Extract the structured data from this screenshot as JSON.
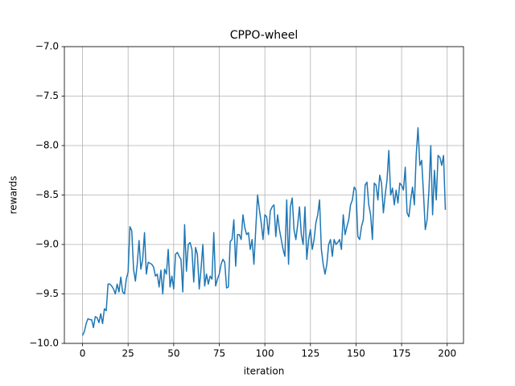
{
  "chart_data": {
    "type": "line",
    "title": "CPPO-wheel",
    "xlabel": "iteration",
    "ylabel": "rewards",
    "xlim": [
      -9.95,
      208.95
    ],
    "xticks": [
      0,
      25,
      50,
      75,
      100,
      125,
      150,
      175,
      200
    ],
    "ylim": [
      -10,
      -7
    ],
    "yticks": [
      {
        "value": -10,
        "label": "−10.0"
      },
      {
        "value": -9.5,
        "label": "−9.5"
      },
      {
        "value": -9,
        "label": "−9.0"
      },
      {
        "value": -8.5,
        "label": "−8.5"
      },
      {
        "value": -8,
        "label": "−8.0"
      },
      {
        "value": -7.5,
        "label": "−7.5"
      },
      {
        "value": -7,
        "label": "−7.0"
      }
    ],
    "grid": true,
    "color": "#1f77b4",
    "values": [
      -9.92,
      -9.88,
      -9.8,
      -9.75,
      -9.76,
      -9.76,
      -9.84,
      -9.73,
      -9.74,
      -9.79,
      -9.7,
      -9.8,
      -9.65,
      -9.67,
      -9.4,
      -9.4,
      -9.42,
      -9.45,
      -9.5,
      -9.4,
      -9.48,
      -9.33,
      -9.48,
      -9.5,
      -9.35,
      -9.28,
      -8.82,
      -8.86,
      -9.25,
      -9.37,
      -9.2,
      -8.96,
      -9.25,
      -9.15,
      -8.88,
      -9.3,
      -9.18,
      -9.19,
      -9.2,
      -9.23,
      -9.32,
      -9.3,
      -9.43,
      -9.26,
      -9.5,
      -9.25,
      -9.3,
      -9.05,
      -9.43,
      -9.32,
      -9.45,
      -9.1,
      -9.08,
      -9.12,
      -9.15,
      -9.48,
      -8.8,
      -9.27,
      -9.0,
      -8.98,
      -9.05,
      -9.38,
      -9.03,
      -9.1,
      -9.45,
      -9.25,
      -9.0,
      -9.42,
      -9.3,
      -9.4,
      -9.32,
      -9.35,
      -8.88,
      -9.42,
      -9.35,
      -9.3,
      -9.2,
      -9.15,
      -9.18,
      -9.44,
      -9.43,
      -8.97,
      -8.95,
      -8.75,
      -9.22,
      -8.9,
      -8.9,
      -8.95,
      -8.7,
      -8.83,
      -8.9,
      -8.88,
      -9.05,
      -8.95,
      -9.2,
      -8.85,
      -8.5,
      -8.65,
      -8.78,
      -8.95,
      -8.7,
      -8.72,
      -8.9,
      -8.66,
      -8.62,
      -8.6,
      -8.92,
      -8.7,
      -8.85,
      -8.95,
      -9.05,
      -9.12,
      -8.55,
      -9.2,
      -8.62,
      -8.53,
      -8.85,
      -8.95,
      -8.8,
      -8.62,
      -8.9,
      -9.0,
      -8.62,
      -9.15,
      -8.95,
      -8.85,
      -9.05,
      -8.95,
      -8.78,
      -8.7,
      -8.55,
      -9.05,
      -9.2,
      -9.3,
      -9.2,
      -9.0,
      -8.95,
      -9.12,
      -8.95,
      -9.0,
      -8.98,
      -8.95,
      -9.05,
      -8.7,
      -8.9,
      -8.82,
      -8.75,
      -8.6,
      -8.55,
      -8.42,
      -8.45,
      -8.92,
      -8.95,
      -8.82,
      -8.75,
      -8.4,
      -8.37,
      -8.6,
      -8.7,
      -8.95,
      -8.38,
      -8.4,
      -8.55,
      -8.3,
      -8.38,
      -8.68,
      -8.5,
      -8.35,
      -8.05,
      -8.5,
      -8.43,
      -8.6,
      -8.45,
      -8.58,
      -8.38,
      -8.4,
      -8.45,
      -8.22,
      -8.68,
      -8.72,
      -8.55,
      -8.42,
      -8.6,
      -8.1,
      -7.82,
      -8.2,
      -8.15,
      -8.48,
      -8.85,
      -8.75,
      -8.45,
      -8.0,
      -8.7,
      -8.25,
      -8.55,
      -8.1,
      -8.12,
      -8.2,
      -8.1,
      -8.65
    ]
  }
}
